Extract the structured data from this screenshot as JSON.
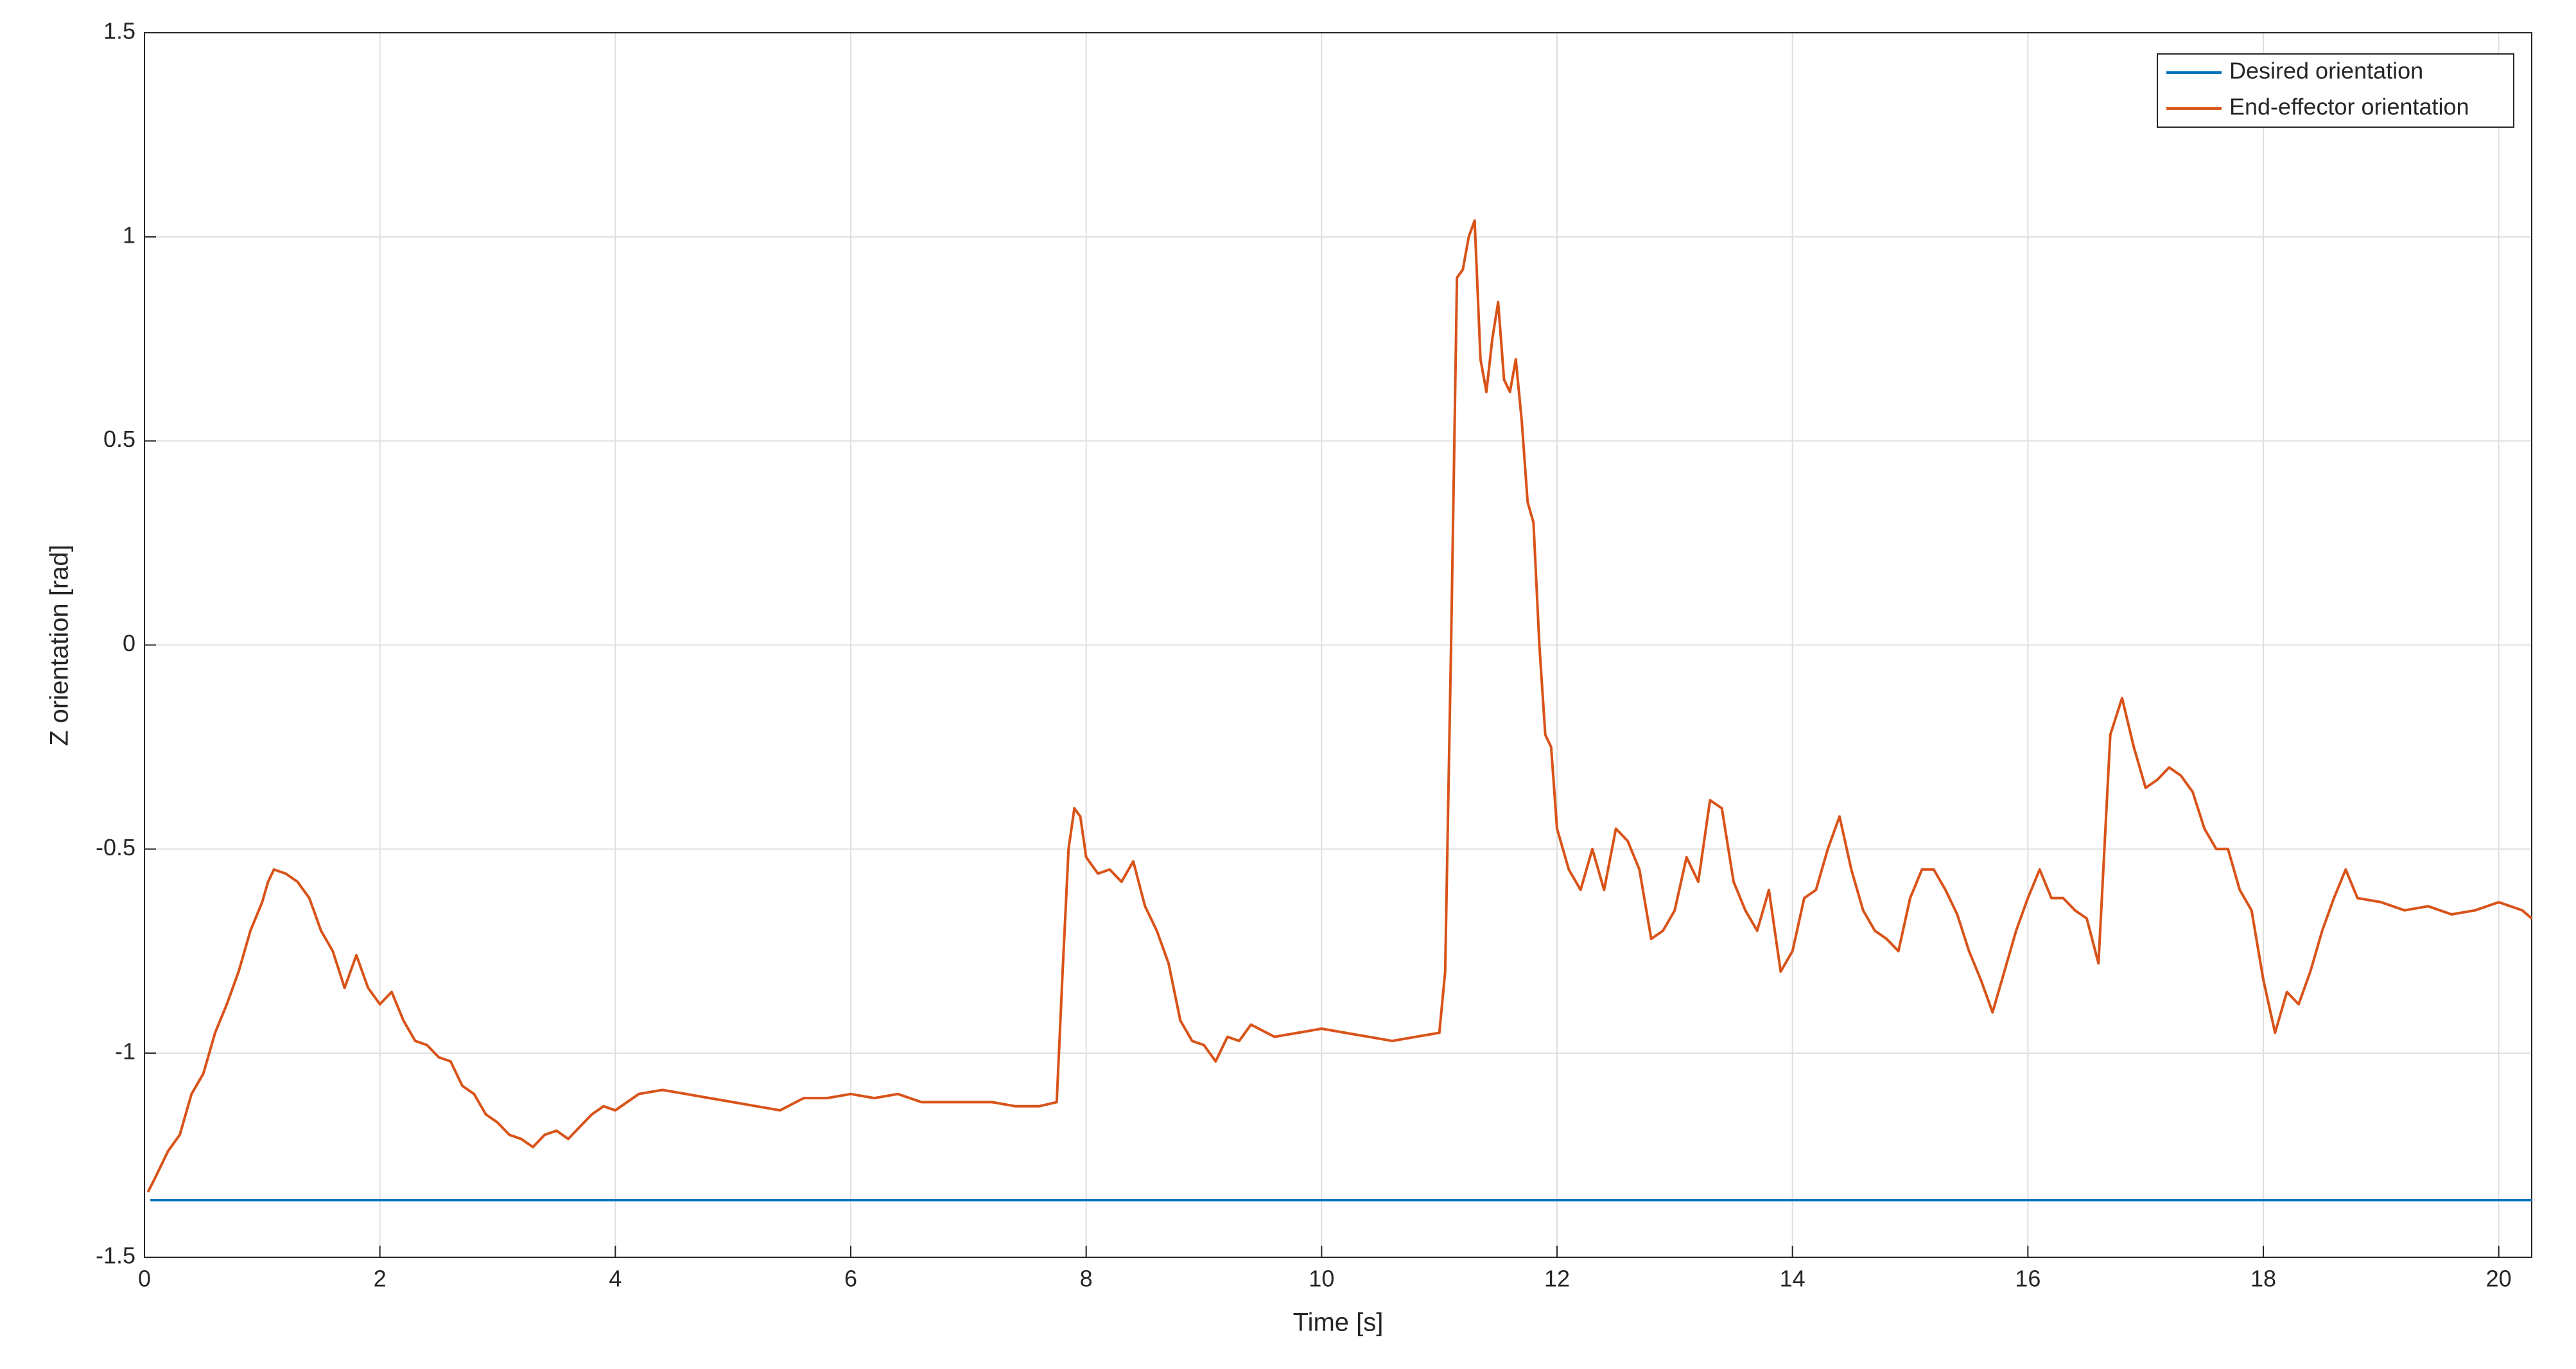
{
  "chart_data": {
    "type": "line",
    "xlabel": "Time [s]",
    "ylabel": "Z orientation [rad]",
    "xlim": [
      0,
      20.28
    ],
    "ylim": [
      -1.5,
      1.5
    ],
    "xticks": [
      0,
      2,
      4,
      6,
      8,
      10,
      12,
      14,
      16,
      18,
      20
    ],
    "yticks": [
      -1.5,
      -1,
      -0.5,
      0,
      0.5,
      1,
      1.5
    ],
    "grid": true,
    "legend": "northeast",
    "series": [
      {
        "name": "Desired orientation",
        "color": "#0072bd",
        "x": [
          0.05,
          20.28
        ],
        "values": [
          -1.36,
          -1.36
        ]
      },
      {
        "name": "End-effector orientation",
        "color": "#d95319",
        "x": [
          0.03,
          0.1,
          0.2,
          0.3,
          0.4,
          0.5,
          0.6,
          0.7,
          0.8,
          0.9,
          1.0,
          1.05,
          1.1,
          1.2,
          1.3,
          1.4,
          1.5,
          1.6,
          1.7,
          1.8,
          1.9,
          2.0,
          2.1,
          2.2,
          2.3,
          2.4,
          2.5,
          2.6,
          2.7,
          2.8,
          2.9,
          3.0,
          3.1,
          3.2,
          3.3,
          3.4,
          3.5,
          3.6,
          3.7,
          3.8,
          3.9,
          4.0,
          4.2,
          4.4,
          4.6,
          4.8,
          5.0,
          5.2,
          5.4,
          5.6,
          5.8,
          6.0,
          6.2,
          6.4,
          6.6,
          6.8,
          7.0,
          7.2,
          7.4,
          7.6,
          7.75,
          7.8,
          7.85,
          7.9,
          7.95,
          8.0,
          8.1,
          8.2,
          8.3,
          8.4,
          8.5,
          8.6,
          8.7,
          8.8,
          8.9,
          9.0,
          9.1,
          9.2,
          9.3,
          9.4,
          9.6,
          9.8,
          10.0,
          10.2,
          10.4,
          10.6,
          10.8,
          11.0,
          11.05,
          11.1,
          11.15,
          11.2,
          11.25,
          11.3,
          11.35,
          11.4,
          11.45,
          11.5,
          11.55,
          11.6,
          11.65,
          11.7,
          11.75,
          11.8,
          11.85,
          11.9,
          11.95,
          12.0,
          12.1,
          12.2,
          12.3,
          12.4,
          12.5,
          12.6,
          12.7,
          12.8,
          12.9,
          13.0,
          13.1,
          13.2,
          13.3,
          13.4,
          13.5,
          13.6,
          13.7,
          13.8,
          13.9,
          14.0,
          14.1,
          14.2,
          14.3,
          14.4,
          14.5,
          14.6,
          14.7,
          14.8,
          14.9,
          15.0,
          15.1,
          15.2,
          15.3,
          15.4,
          15.5,
          15.6,
          15.7,
          15.8,
          15.9,
          16.0,
          16.1,
          16.2,
          16.3,
          16.4,
          16.5,
          16.6,
          16.7,
          16.8,
          16.9,
          17.0,
          17.1,
          17.2,
          17.3,
          17.4,
          17.5,
          17.6,
          17.7,
          17.8,
          17.9,
          18.0,
          18.1,
          18.2,
          18.3,
          18.4,
          18.5,
          18.6,
          18.7,
          18.8,
          19.0,
          19.2,
          19.4,
          19.6,
          19.8,
          20.0,
          20.2,
          20.28
        ],
        "values": [
          -1.34,
          -1.3,
          -1.24,
          -1.2,
          -1.1,
          -1.05,
          -0.95,
          -0.88,
          -0.8,
          -0.7,
          -0.63,
          -0.58,
          -0.55,
          -0.56,
          -0.58,
          -0.62,
          -0.7,
          -0.75,
          -0.84,
          -0.76,
          -0.84,
          -0.88,
          -0.85,
          -0.92,
          -0.97,
          -0.98,
          -1.01,
          -1.02,
          -1.08,
          -1.1,
          -1.15,
          -1.17,
          -1.2,
          -1.21,
          -1.23,
          -1.2,
          -1.19,
          -1.21,
          -1.18,
          -1.15,
          -1.13,
          -1.14,
          -1.1,
          -1.09,
          -1.1,
          -1.11,
          -1.12,
          -1.13,
          -1.14,
          -1.11,
          -1.11,
          -1.1,
          -1.11,
          -1.1,
          -1.12,
          -1.12,
          -1.12,
          -1.12,
          -1.13,
          -1.13,
          -1.12,
          -0.8,
          -0.5,
          -0.4,
          -0.42,
          -0.52,
          -0.56,
          -0.55,
          -0.58,
          -0.53,
          -0.64,
          -0.7,
          -0.78,
          -0.92,
          -0.97,
          -0.98,
          -1.02,
          -0.96,
          -0.97,
          -0.93,
          -0.96,
          -0.95,
          -0.94,
          -0.95,
          -0.96,
          -0.97,
          -0.96,
          -0.95,
          -0.8,
          0.0,
          0.9,
          0.92,
          1.0,
          1.04,
          0.7,
          0.62,
          0.75,
          0.84,
          0.65,
          0.62,
          0.7,
          0.55,
          0.35,
          0.3,
          0.0,
          -0.22,
          -0.25,
          -0.45,
          -0.55,
          -0.6,
          -0.5,
          -0.6,
          -0.45,
          -0.48,
          -0.55,
          -0.72,
          -0.7,
          -0.65,
          -0.52,
          -0.58,
          -0.38,
          -0.4,
          -0.58,
          -0.65,
          -0.7,
          -0.6,
          -0.8,
          -0.75,
          -0.62,
          -0.6,
          -0.5,
          -0.42,
          -0.55,
          -0.65,
          -0.7,
          -0.72,
          -0.75,
          -0.62,
          -0.55,
          -0.55,
          -0.6,
          -0.66,
          -0.75,
          -0.82,
          -0.9,
          -0.8,
          -0.7,
          -0.62,
          -0.55,
          -0.62,
          -0.62,
          -0.65,
          -0.67,
          -0.78,
          -0.22,
          -0.13,
          -0.25,
          -0.35,
          -0.33,
          -0.3,
          -0.32,
          -0.36,
          -0.45,
          -0.5,
          -0.5,
          -0.6,
          -0.65,
          -0.82,
          -0.95,
          -0.85,
          -0.88,
          -0.8,
          -0.7,
          -0.62,
          -0.55,
          -0.62,
          -0.63,
          -0.65,
          -0.64,
          -0.66,
          -0.65,
          -0.63,
          -0.65,
          -0.67
        ]
      }
    ]
  }
}
